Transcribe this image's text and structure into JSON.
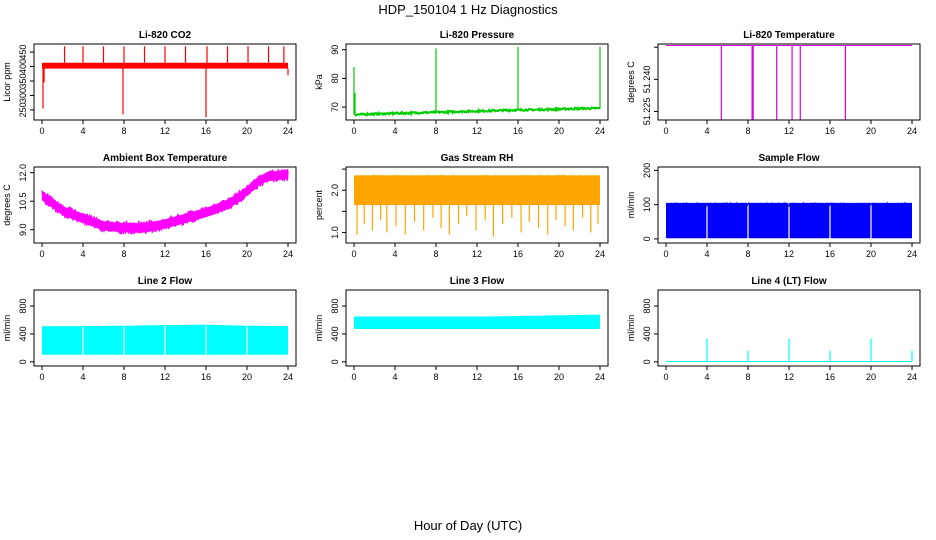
{
  "figure": {
    "title": "HDP_150104  1 Hz Diagnostics",
    "xlabel": "Hour of Day (UTC)"
  },
  "chart_data": [
    {
      "type": "line",
      "title": "Li-820 CO2",
      "ylabel": "Licor ppm",
      "color": "#ff0000",
      "xticks": [
        0,
        4,
        8,
        12,
        16,
        20,
        24
      ],
      "yticks": [
        250,
        300,
        350,
        400,
        450
      ],
      "xlim": [
        0,
        24
      ],
      "ylim": [
        215,
        478
      ],
      "band": {
        "low": 393,
        "high": 413
      },
      "series": [
        {
          "name": "CO2",
          "x": [
            0,
            1,
            2,
            3,
            4,
            5,
            6,
            7,
            8,
            9,
            10,
            11,
            12,
            13,
            14,
            15,
            16,
            17,
            18,
            19,
            20,
            21,
            22,
            23,
            24
          ],
          "values": [
            400,
            402,
            403,
            401,
            404,
            402,
            403,
            404,
            402,
            403,
            401,
            403,
            404,
            402,
            401,
            403,
            404,
            402,
            403,
            401,
            402,
            404,
            403,
            402,
            401
          ]
        }
      ],
      "spikes": [
        {
          "x": 0.1,
          "value": 255
        },
        {
          "x": 0.2,
          "value": 345
        },
        {
          "x": 2.2,
          "value": 470
        },
        {
          "x": 4.0,
          "value": 470
        },
        {
          "x": 6.0,
          "value": 470
        },
        {
          "x": 7.9,
          "value": 235
        },
        {
          "x": 8.0,
          "value": 470
        },
        {
          "x": 10.0,
          "value": 470
        },
        {
          "x": 12.0,
          "value": 470
        },
        {
          "x": 14.0,
          "value": 470
        },
        {
          "x": 16.0,
          "value": 225
        },
        {
          "x": 16.1,
          "value": 470
        },
        {
          "x": 18.1,
          "value": 470
        },
        {
          "x": 20.1,
          "value": 470
        },
        {
          "x": 22.1,
          "value": 470
        },
        {
          "x": 23.6,
          "value": 470
        },
        {
          "x": 24.0,
          "value": 370
        }
      ]
    },
    {
      "type": "line",
      "title": "Li-820 Pressure",
      "ylabel": "kPa",
      "color": "#00cc00",
      "xticks": [
        0,
        4,
        8,
        12,
        16,
        20,
        24
      ],
      "yticks": [
        70,
        80,
        90
      ],
      "xlim": [
        0,
        24
      ],
      "ylim": [
        65.5,
        92
      ],
      "band": null,
      "series": [
        {
          "name": "Pressure",
          "x": [
            0.1,
            0.3,
            2,
            4,
            6,
            8,
            10,
            12,
            14,
            16,
            18,
            20,
            22,
            24
          ],
          "values": [
            67.3,
            67.4,
            67.6,
            67.8,
            68.0,
            68.2,
            68.4,
            68.6,
            68.8,
            69.0,
            69.1,
            69.3,
            69.5,
            69.6
          ]
        }
      ],
      "spikes": [
        {
          "x": 0.0,
          "value": 84
        },
        {
          "x": 0.1,
          "value": 75
        },
        {
          "x": 8.0,
          "value": 90.5
        },
        {
          "x": 16.0,
          "value": 91
        },
        {
          "x": 24.0,
          "value": 91
        }
      ]
    },
    {
      "type": "line",
      "title": "Li-820 Temperature",
      "ylabel": "degrees C",
      "color": "#dd00dd",
      "xticks": [
        0,
        4,
        8,
        12,
        16,
        20,
        24
      ],
      "yticks": [
        51.225,
        51.24,
        51.255
      ],
      "ytick_labels": [
        "51.225",
        "51.240",
        ""
      ],
      "xlim": [
        0,
        24
      ],
      "ylim": [
        51.221,
        51.2565
      ],
      "band": null,
      "series": [
        {
          "name": "Temperature",
          "x": [
            0,
            24
          ],
          "values": [
            51.2558,
            51.2558
          ]
        }
      ],
      "spikes": [
        {
          "x": 5.4,
          "value": 51.221
        },
        {
          "x": 8.4,
          "value": 51.221
        },
        {
          "x": 8.5,
          "value": 51.221
        },
        {
          "x": 10.8,
          "value": 51.221
        },
        {
          "x": 12.3,
          "value": 51.221
        },
        {
          "x": 13.1,
          "value": 51.221
        },
        {
          "x": 17.5,
          "value": 51.221
        }
      ]
    },
    {
      "type": "line",
      "title": "Ambient Box Temperature",
      "ylabel": "degrees C",
      "color": "#ff00ff",
      "xticks": [
        0,
        4,
        8,
        12,
        16,
        20,
        24
      ],
      "yticks": [
        9.0,
        10.5,
        12.0
      ],
      "ytick_labels": [
        "9.0",
        "10.5",
        "12.0"
      ],
      "xlim": [
        0,
        24
      ],
      "ylim": [
        8.3,
        12.3
      ],
      "band": {
        "width": 0.7
      },
      "series": [
        {
          "name": "Ambient Box",
          "x": [
            0,
            2,
            4,
            6,
            8,
            10,
            12,
            14,
            16,
            18,
            19.5,
            21,
            22,
            24
          ],
          "values": [
            10.8,
            10.0,
            9.6,
            9.2,
            9.1,
            9.1,
            9.3,
            9.6,
            9.9,
            10.3,
            10.8,
            11.5,
            11.8,
            11.9
          ]
        }
      ],
      "spikes": []
    },
    {
      "type": "line",
      "title": "Gas Stream RH",
      "ylabel": "percent",
      "color": "#ffa500",
      "xticks": [
        0,
        4,
        8,
        12,
        16,
        20,
        24
      ],
      "yticks": [
        1.0,
        1.5,
        2.0,
        2.5
      ],
      "ytick_labels": [
        "1.0",
        "",
        "2.0",
        ""
      ],
      "xlim": [
        0,
        24
      ],
      "ylim": [
        0.75,
        2.55
      ],
      "band": {
        "low": 1.65,
        "high": 2.35
      },
      "series": [
        {
          "name": "RH",
          "x": [
            0,
            24
          ],
          "values": [
            2.0,
            2.0
          ]
        }
      ],
      "spikes": [
        {
          "x": 0.3,
          "value": 0.95
        },
        {
          "x": 1.0,
          "value": 1.2
        },
        {
          "x": 1.8,
          "value": 1.05
        },
        {
          "x": 2.6,
          "value": 1.3
        },
        {
          "x": 3.2,
          "value": 1.0
        },
        {
          "x": 4.1,
          "value": 1.15
        },
        {
          "x": 5.0,
          "value": 0.95
        },
        {
          "x": 5.9,
          "value": 1.25
        },
        {
          "x": 6.8,
          "value": 1.05
        },
        {
          "x": 7.7,
          "value": 1.35
        },
        {
          "x": 8.5,
          "value": 1.1
        },
        {
          "x": 9.3,
          "value": 0.95
        },
        {
          "x": 10.2,
          "value": 1.2
        },
        {
          "x": 11.0,
          "value": 1.4
        },
        {
          "x": 11.9,
          "value": 1.05
        },
        {
          "x": 12.8,
          "value": 1.3
        },
        {
          "x": 13.6,
          "value": 0.9
        },
        {
          "x": 14.5,
          "value": 1.2
        },
        {
          "x": 15.4,
          "value": 1.35
        },
        {
          "x": 16.3,
          "value": 1.0
        },
        {
          "x": 17.1,
          "value": 1.25
        },
        {
          "x": 18.0,
          "value": 1.1
        },
        {
          "x": 18.9,
          "value": 0.95
        },
        {
          "x": 19.7,
          "value": 1.3
        },
        {
          "x": 20.6,
          "value": 1.15
        },
        {
          "x": 21.4,
          "value": 1.05
        },
        {
          "x": 22.3,
          "value": 1.35
        },
        {
          "x": 23.1,
          "value": 1.0
        },
        {
          "x": 23.8,
          "value": 1.2
        }
      ]
    },
    {
      "type": "line",
      "title": "Sample Flow",
      "ylabel": "ml/min",
      "color": "#0000ff",
      "xticks": [
        0,
        4,
        8,
        12,
        16,
        20,
        24
      ],
      "yticks": [
        0,
        100,
        200
      ],
      "xlim": [
        0,
        24
      ],
      "ylim": [
        -12,
        210
      ],
      "band": {
        "low": 2,
        "high": 105
      },
      "series": [
        {
          "name": "Sample Flow",
          "x": [
            0,
            24
          ],
          "values": [
            55,
            55
          ]
        }
      ],
      "gaps": [
        4,
        8,
        12,
        16,
        20
      ],
      "spikes": []
    },
    {
      "type": "line",
      "title": "Line 2 Flow",
      "ylabel": "ml/min",
      "color": "#00ffff",
      "xticks": [
        0,
        4,
        8,
        12,
        16,
        20,
        24
      ],
      "yticks": [
        0,
        400,
        800
      ],
      "xlim": [
        0,
        24
      ],
      "ylim": [
        -60,
        1030
      ],
      "band": {
        "low": 100,
        "high": 510
      },
      "series": [
        {
          "name": "Line 2 Flow",
          "x": [
            0,
            4,
            8,
            12,
            16,
            20,
            24
          ],
          "values": [
            500,
            505,
            510,
            520,
            525,
            510,
            505
          ]
        }
      ],
      "gaps": [
        4,
        8,
        12,
        16,
        20
      ],
      "spikes": []
    },
    {
      "type": "line",
      "title": "Line 3 Flow",
      "ylabel": "ml/min",
      "color": "#00ffff",
      "xticks": [
        0,
        4,
        8,
        12,
        16,
        20,
        24
      ],
      "yticks": [
        0,
        400,
        800
      ],
      "xlim": [
        0,
        24
      ],
      "ylim": [
        -60,
        1030
      ],
      "band": {
        "low": 470,
        "high": 650
      },
      "series": [
        {
          "name": "Line 3 Flow",
          "x": [
            0,
            4,
            8,
            12,
            16,
            20,
            24
          ],
          "values": [
            640,
            630,
            620,
            640,
            650,
            660,
            670
          ]
        }
      ],
      "gaps": [],
      "spikes": []
    },
    {
      "type": "line",
      "title": "Line 4 (LT) Flow",
      "ylabel": "ml/min",
      "color": "#00ffff",
      "xticks": [
        0,
        4,
        8,
        12,
        16,
        20,
        24
      ],
      "yticks": [
        0,
        400,
        800
      ],
      "xlim": [
        0,
        24
      ],
      "ylim": [
        -60,
        1030
      ],
      "band": null,
      "series": [
        {
          "name": "Line 4 Flow",
          "x": [
            0,
            24
          ],
          "values": [
            5,
            5
          ]
        }
      ],
      "spikes": [
        {
          "x": 4.0,
          "value": 330
        },
        {
          "x": 8.0,
          "value": 160
        },
        {
          "x": 12.0,
          "value": 330
        },
        {
          "x": 16.0,
          "value": 160
        },
        {
          "x": 20.0,
          "value": 330
        },
        {
          "x": 24.0,
          "value": 160
        }
      ]
    }
  ]
}
